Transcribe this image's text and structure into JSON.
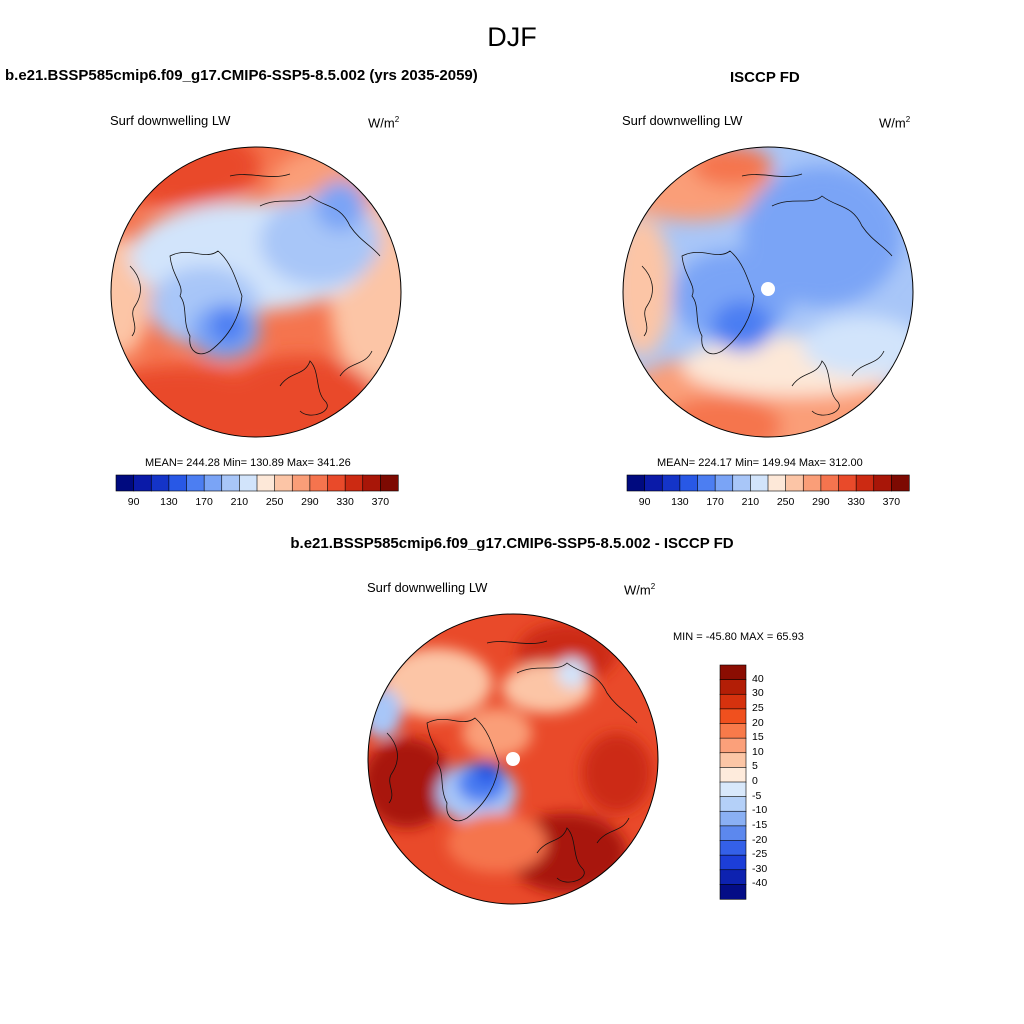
{
  "page": {
    "title": "DJF"
  },
  "panels": [
    {
      "id": "model",
      "case_title": "b.e21.BSSP585cmip6.f09_g17.CMIP6-SSP5-8.5.002 (yrs 2035-2059)",
      "variable": "Surf downwelling LW",
      "units_base": "W/m",
      "units_exp": "2",
      "stats": "MEAN= 244.28  Min= 130.89  Max= 341.26",
      "field": "warm periphery (Atlantic, Eurasia, Pacific), cold core over Greenland and Arctic"
    },
    {
      "id": "obs",
      "case_title": "ISCCP FD",
      "variable": "Surf downwelling LW",
      "units_base": "W/m",
      "units_exp": "2",
      "stats": "MEAN= 224.17  Min= 149.94  Max= 312.00",
      "field": "cooler overall, blue over Arctic and Siberia, missing data at pole"
    },
    {
      "id": "diff",
      "case_title": "b.e21.BSSP585cmip6.f09_g17.CMIP6-SSP5-8.5.002 - ISCCP FD",
      "variable": "Surf downwelling LW",
      "units_base": "W/m",
      "units_exp": "2",
      "stats": "MIN = -45.80 MAX =  65.93",
      "field": "mostly positive (red), negative over Greenland, missing data at pole"
    }
  ],
  "colorbars": {
    "absolute": {
      "colors": [
        "#000a7f",
        "#0a1aa8",
        "#1434c8",
        "#2858e6",
        "#4c7ef2",
        "#7aa4f6",
        "#a8c6f8",
        "#d2e4fb",
        "#fde8d8",
        "#fcc5a6",
        "#fa9e78",
        "#f5744e",
        "#e94a2a",
        "#cc2a12",
        "#a81608",
        "#7d0a02"
      ],
      "labels": [
        "90",
        "130",
        "170",
        "210",
        "250",
        "290",
        "330",
        "370"
      ]
    },
    "difference": {
      "colors_top_to_bottom": [
        "#8b0d02",
        "#b31e06",
        "#d6320e",
        "#f0501e",
        "#f87a4a",
        "#fba07a",
        "#fcc6a6",
        "#feebdc",
        "#d8e8fb",
        "#b4d0f8",
        "#8ab0f4",
        "#5c88ee",
        "#3460e8",
        "#1c3ed8",
        "#0d22b0",
        "#040d86"
      ],
      "labels": [
        "40",
        "30",
        "25",
        "20",
        "15",
        "10",
        "5",
        "0",
        "-5",
        "-10",
        "-15",
        "-20",
        "-25",
        "-30",
        "-40"
      ]
    }
  }
}
